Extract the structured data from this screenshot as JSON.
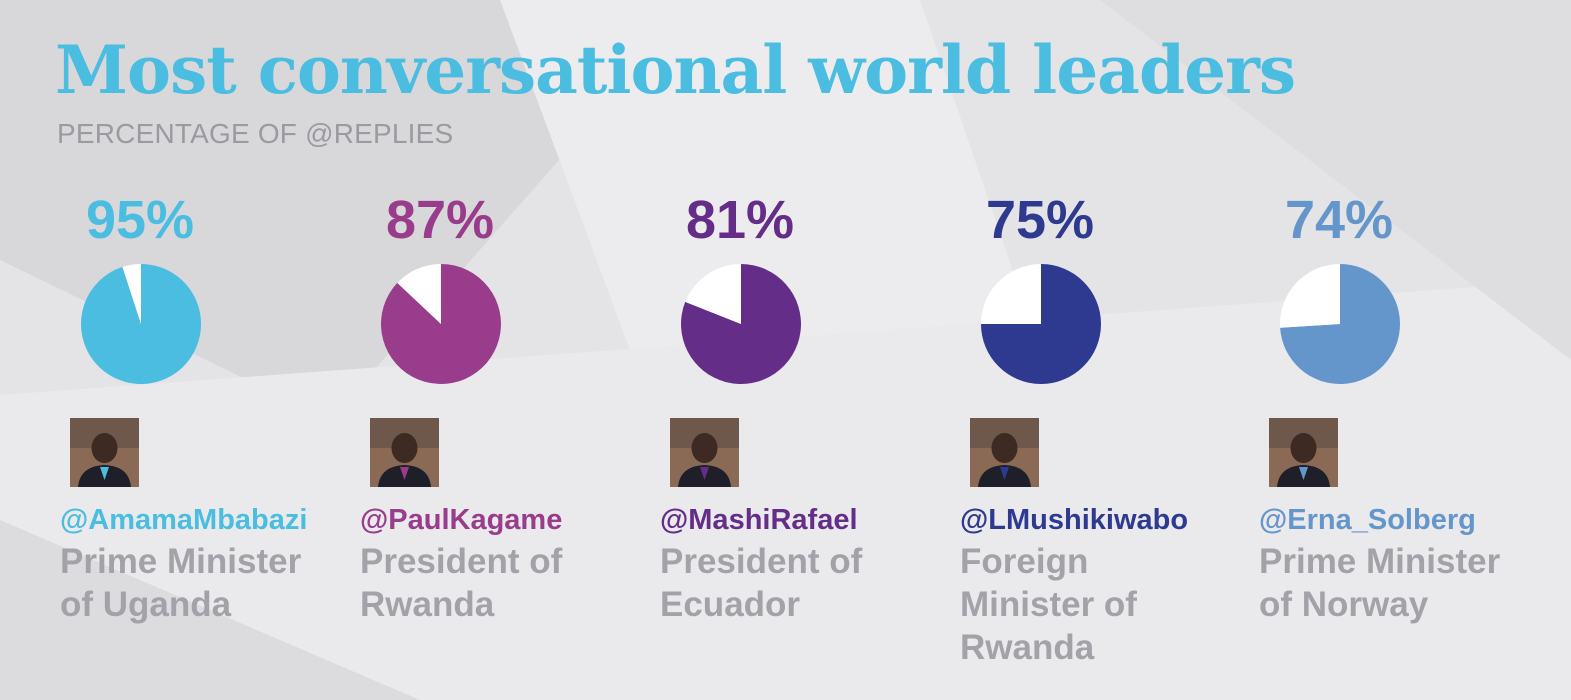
{
  "title": "Most conversational world leaders",
  "subtitle": "PERCENTAGE OF @REPLIES",
  "chart_data": {
    "type": "pie",
    "title": "Most conversational world leaders",
    "subtitle": "PERCENTAGE OF @REPLIES",
    "unit": "%",
    "categories": [
      "@AmamaMbabazi",
      "@PaulKagame",
      "@MashiRafael",
      "@LMushikiwabo",
      "@Erna_Solberg"
    ],
    "values": [
      95,
      87,
      81,
      75,
      74
    ]
  },
  "leaders": [
    {
      "pct_label": "95%",
      "value": 95,
      "handle": "@AmamaMbabazi",
      "role": "Prime Minister of Uganda",
      "color": "#4bbde0",
      "avatar_icon": "person-photo-icon"
    },
    {
      "pct_label": "87%",
      "value": 87,
      "handle": "@PaulKagame",
      "role": "President of Rwanda",
      "color": "#993c8c",
      "avatar_icon": "person-photo-icon"
    },
    {
      "pct_label": "81%",
      "value": 81,
      "handle": "@MashiRafael",
      "role": "President of Ecuador",
      "color": "#642d87",
      "avatar_icon": "person-photo-icon"
    },
    {
      "pct_label": "75%",
      "value": 75,
      "handle": "@LMushikiwabo",
      "role": "Foreign Minister of Rwanda",
      "color": "#2e3a8f",
      "avatar_icon": "person-photo-icon"
    },
    {
      "pct_label": "74%",
      "value": 74,
      "handle": "@Erna_Solberg",
      "role": "Prime Minister of Norway",
      "color": "#6596cb",
      "avatar_icon": "person-photo-icon"
    }
  ]
}
